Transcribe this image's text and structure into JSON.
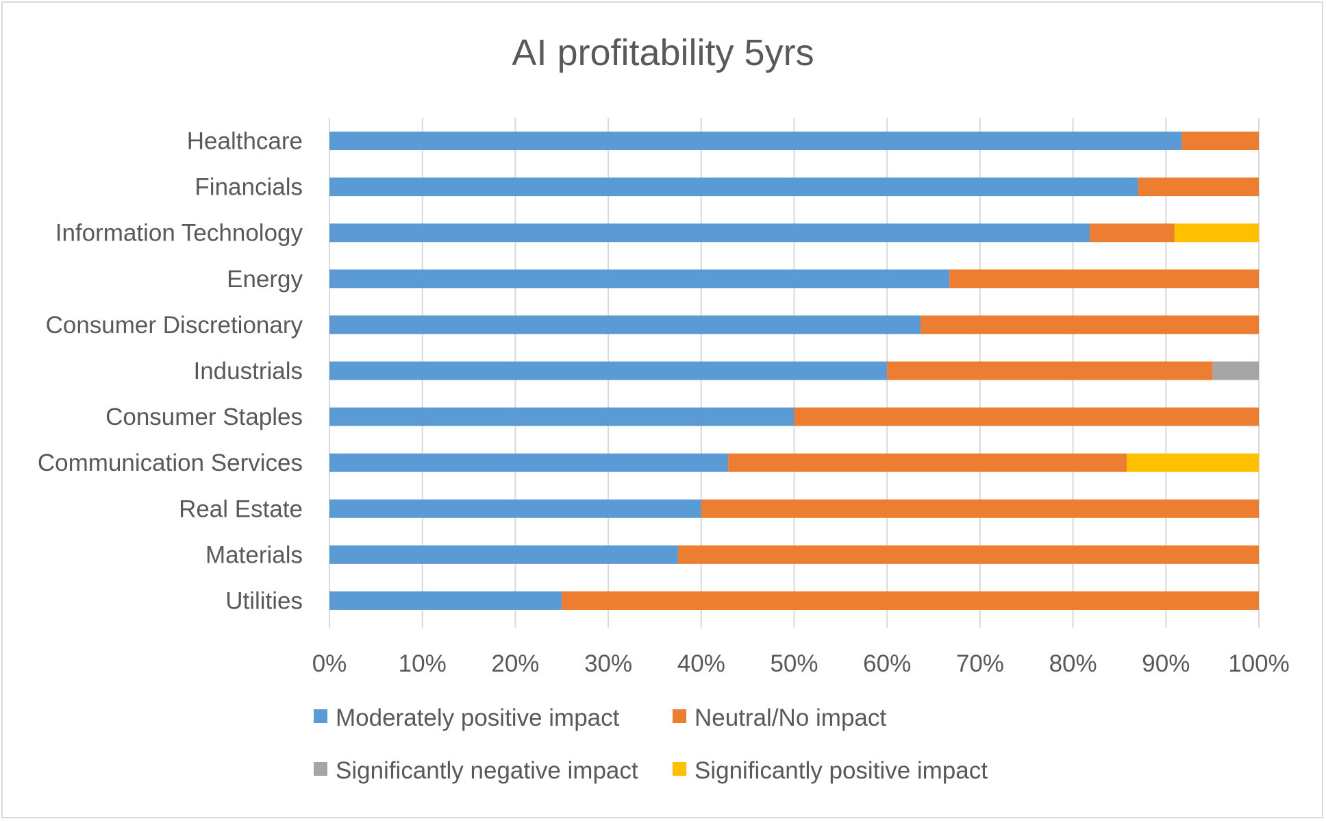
{
  "chart_data": {
    "type": "bar",
    "orientation": "horizontal",
    "stacked": "percent",
    "title": "AI profitability 5yrs",
    "categories": [
      "Healthcare",
      "Financials",
      "Information Technology",
      "Energy",
      "Consumer Discretionary",
      "Industrials",
      "Consumer Staples",
      "Communication Services",
      "Real Estate",
      "Materials",
      "Utilities"
    ],
    "series": [
      {
        "name": "Moderately positive impact",
        "color": "#5B9BD5",
        "values": [
          91.7,
          87.0,
          81.8,
          66.7,
          63.6,
          60.0,
          50.0,
          42.9,
          40.0,
          37.5,
          25.0
        ]
      },
      {
        "name": "Neutral/No impact",
        "color": "#ED7D31",
        "values": [
          8.3,
          13.0,
          9.1,
          33.3,
          36.4,
          35.0,
          50.0,
          42.9,
          60.0,
          62.5,
          75.0
        ]
      },
      {
        "name": "Significantly negative impact",
        "color": "#A5A5A5",
        "values": [
          0,
          0,
          0,
          0,
          0,
          5.0,
          0,
          0,
          0,
          0,
          0
        ]
      },
      {
        "name": "Significantly positive impact",
        "color": "#FFC000",
        "values": [
          0,
          0,
          9.1,
          0,
          0,
          0,
          0,
          14.2,
          0,
          0,
          0
        ]
      }
    ],
    "xlim": [
      0,
      100
    ],
    "xticks": [
      "0%",
      "10%",
      "20%",
      "30%",
      "40%",
      "50%",
      "60%",
      "70%",
      "80%",
      "90%",
      "100%"
    ],
    "grid": true,
    "legend_position": "bottom"
  }
}
